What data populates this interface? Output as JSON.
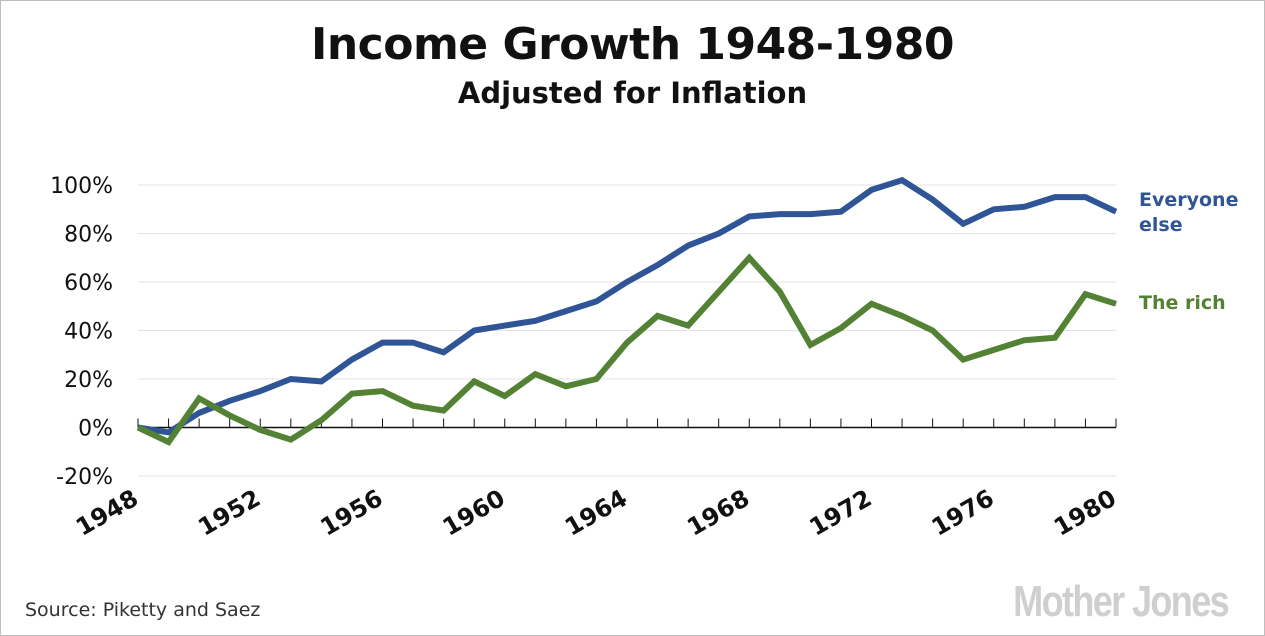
{
  "chart_data": {
    "type": "line",
    "title": "Income Growth 1948-1980",
    "subtitle": "Adjusted for Inflation",
    "xlabel": "",
    "ylabel": "",
    "xlim": [
      1948,
      1980
    ],
    "ylim": [
      -20,
      100
    ],
    "yticks": [
      -20,
      0,
      20,
      40,
      60,
      80,
      100
    ],
    "ytick_labels": [
      "-20%",
      "0%",
      "20%",
      "40%",
      "60%",
      "80%",
      "100%"
    ],
    "xtick_labels": [
      "1948",
      "1952",
      "1956",
      "1960",
      "1964",
      "1968",
      "1972",
      "1976",
      "1980"
    ],
    "x": [
      1948,
      1949,
      1950,
      1951,
      1952,
      1953,
      1954,
      1955,
      1956,
      1957,
      1958,
      1959,
      1960,
      1961,
      1962,
      1963,
      1964,
      1965,
      1966,
      1967,
      1968,
      1969,
      1970,
      1971,
      1972,
      1973,
      1974,
      1975,
      1976,
      1977,
      1978,
      1979,
      1980
    ],
    "series": [
      {
        "name": "Everyone else",
        "label_lines": [
          "Everyone",
          "else"
        ],
        "color": "#2f5597",
        "values": [
          0,
          -2,
          6,
          11,
          15,
          20,
          19,
          28,
          35,
          35,
          31,
          40,
          42,
          44,
          48,
          52,
          60,
          67,
          75,
          80,
          87,
          88,
          88,
          89,
          98,
          102,
          94,
          84,
          90,
          91,
          95,
          95,
          89
        ]
      },
      {
        "name": "The rich",
        "label_lines": [
          "The rich"
        ],
        "color": "#548235",
        "values": [
          0,
          -6,
          12,
          5,
          -1,
          -5,
          3,
          14,
          15,
          9,
          7,
          19,
          13,
          22,
          17,
          20,
          35,
          46,
          42,
          56,
          70,
          56,
          34,
          41,
          51,
          46,
          40,
          28,
          32,
          36,
          37,
          55,
          51
        ]
      }
    ],
    "grid": true,
    "legend_position": "right"
  },
  "footer": {
    "source": "Source: Piketty and Saez",
    "brand": "Mother Jones"
  }
}
